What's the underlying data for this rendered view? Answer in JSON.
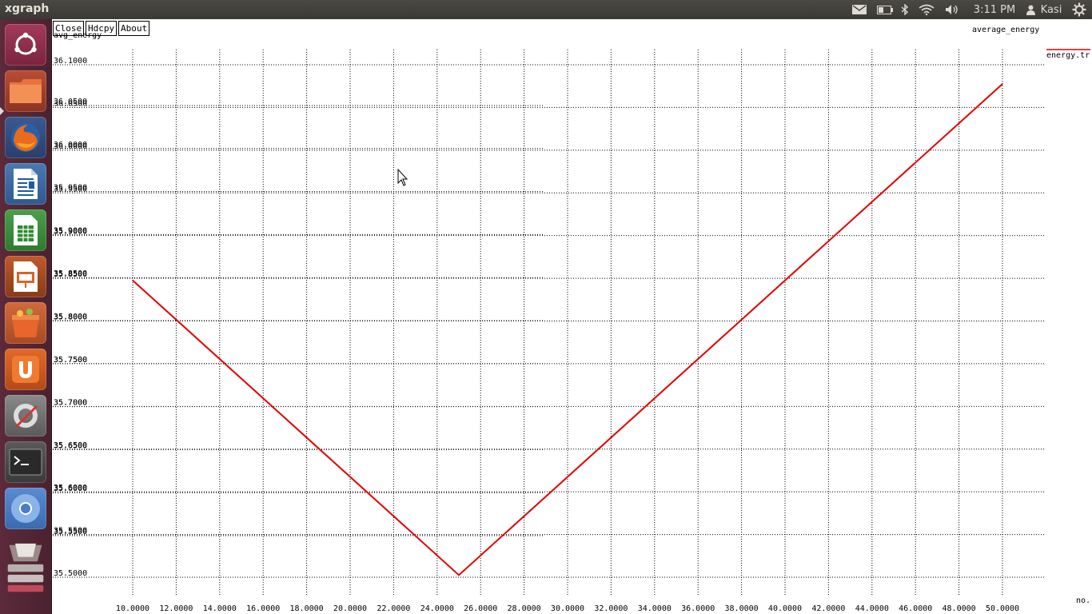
{
  "window": {
    "title": "xgraph"
  },
  "panel": {
    "clock": "3:11 PM",
    "user": "Kasi"
  },
  "launcher": {
    "items": [
      {
        "name": "dash-home-icon"
      },
      {
        "name": "files-icon"
      },
      {
        "name": "firefox-icon"
      },
      {
        "name": "libreoffice-writer-icon"
      },
      {
        "name": "libreoffice-calc-icon"
      },
      {
        "name": "libreoffice-impress-icon"
      },
      {
        "name": "software-center-icon"
      },
      {
        "name": "ubuntu-one-icon"
      },
      {
        "name": "system-settings-icon"
      },
      {
        "name": "terminal-icon"
      },
      {
        "name": "chromium-icon"
      },
      {
        "name": "workspace-switcher-icon"
      }
    ]
  },
  "toolbar": {
    "close_label": "Close",
    "hdcpy_label": "Hdcpy",
    "about_label": "About"
  },
  "chart_data": {
    "type": "line",
    "title": "average_energy",
    "ylabel": "avg_energy",
    "xlabel": "no.",
    "legend": "energy.tr",
    "legend_position": "top-right",
    "grid": true,
    "xlim": [
      10,
      50
    ],
    "ylim": [
      35.5,
      36.1
    ],
    "x_ticks": [
      "10.0000",
      "12.0000",
      "14.0000",
      "16.0000",
      "18.0000",
      "20.0000",
      "22.0000",
      "24.0000",
      "26.0000",
      "28.0000",
      "30.0000",
      "32.0000",
      "34.0000",
      "36.0000",
      "38.0000",
      "40.0000",
      "42.0000",
      "44.0000",
      "46.0000",
      "48.0000",
      "50.0000"
    ],
    "y_ticks": [
      "35.5000",
      "35.5500",
      "35.6000",
      "35.6500",
      "35.7000",
      "35.7500",
      "35.8000",
      "35.8500",
      "35.9000",
      "35.9500",
      "36.0000",
      "36.0500",
      "36.1000"
    ],
    "y_ticks_overlay": [
      "35.5500",
      "35.6000",
      "35.6500",
      "35.7000",
      "35.7500",
      "35.8000",
      "35.8500",
      "35.9000",
      "35.9500",
      "36.0000",
      "36.0500"
    ],
    "series": [
      {
        "name": "energy.tr",
        "color": "#e00000",
        "x": [
          10,
          25,
          50
        ],
        "y": [
          35.8475,
          35.5025,
          36.0775
        ]
      }
    ]
  }
}
